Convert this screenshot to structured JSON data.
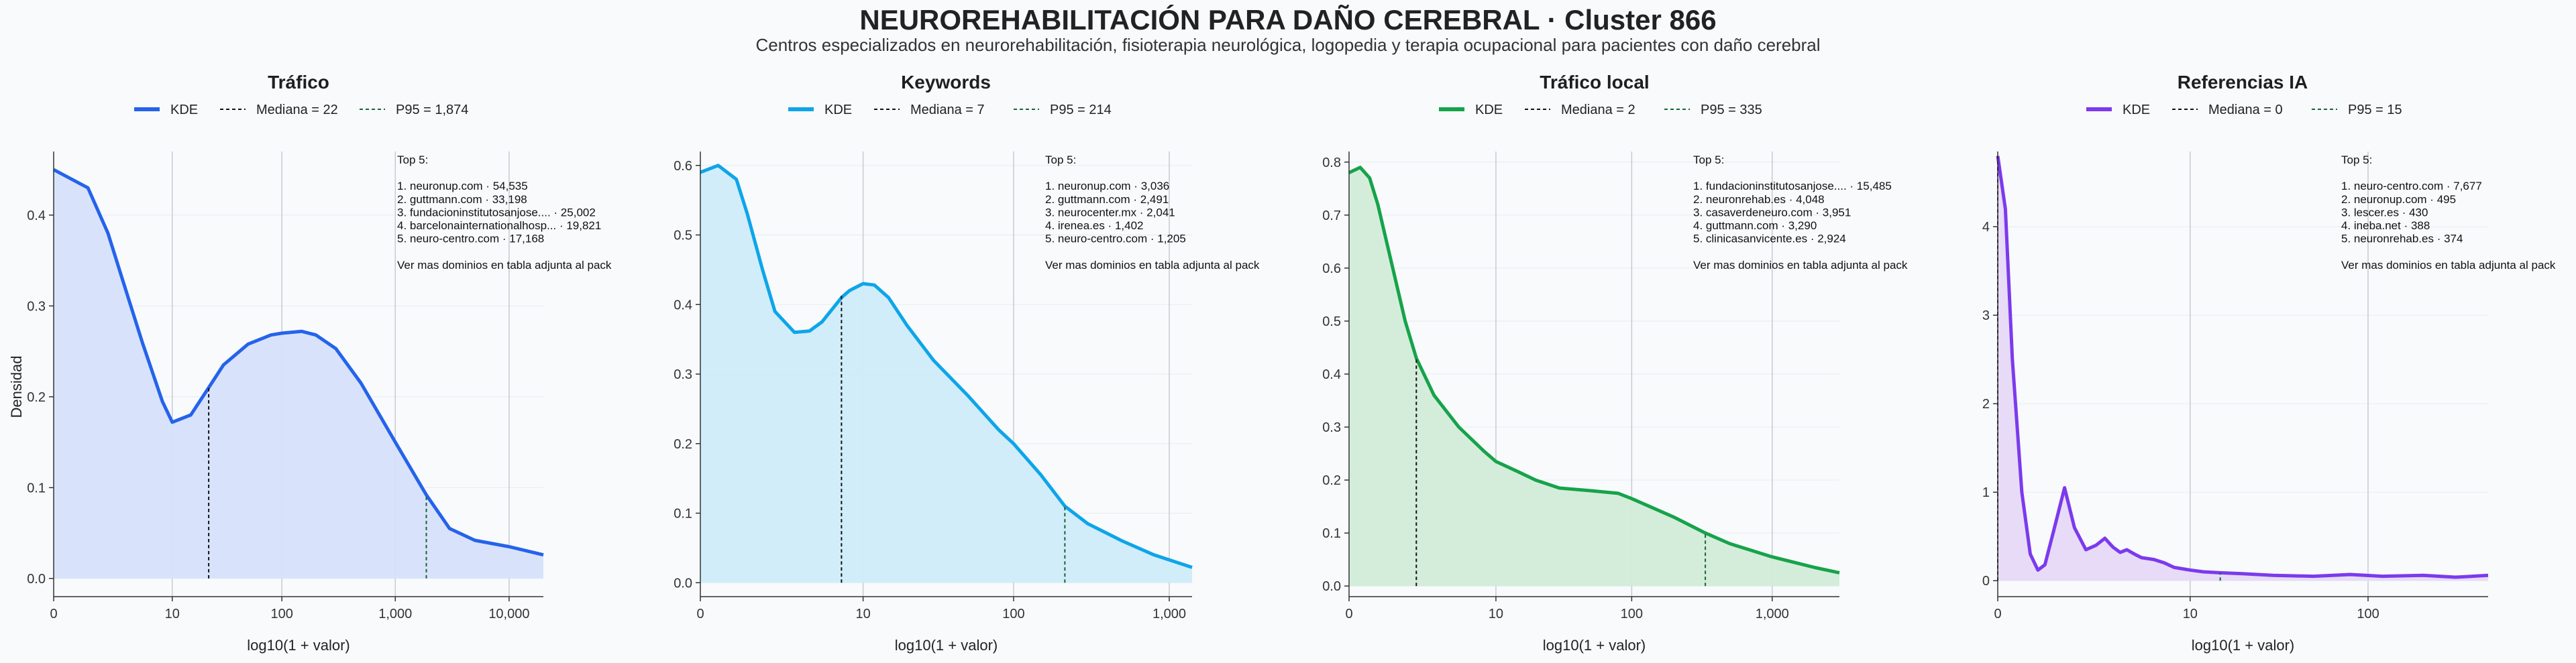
{
  "header": {
    "title": "NEUROREHABILITACIÓN PARA DAÑO CEREBRAL · Cluster 866",
    "subtitle": "Centros especializados en neurorehabilitación, fisioterapia neurológica, logopedia y terapia ocupacional para pacientes con daño cerebral"
  },
  "chart_data": [
    {
      "type": "area",
      "title": "Tráfico",
      "xlabel": "log10(1 + valor)",
      "ylabel": "Densidad",
      "x_scale": "log10(1+x)",
      "xlim": [
        0,
        20000
      ],
      "ylim": [
        -0.02,
        0.47
      ],
      "x_ticks": [
        0,
        10,
        100,
        1000,
        10000
      ],
      "x_tick_labels": [
        "0",
        "10",
        "100",
        "1,000",
        "10,000"
      ],
      "y_ticks": [
        0.0,
        0.1,
        0.2,
        0.3,
        0.4
      ],
      "y_tick_labels": [
        "0.0",
        "0.1",
        "0.2",
        "0.3",
        "0.4"
      ],
      "color": "#2563eb",
      "fill": "#d6e1fb",
      "series": [
        {
          "name": "KDE",
          "x": [
            0,
            1,
            2,
            3,
            5,
            8,
            10,
            15,
            22,
            30,
            50,
            80,
            100,
            150,
            200,
            300,
            500,
            1000,
            1874,
            3000,
            5000,
            10000,
            20000
          ],
          "y": [
            0.45,
            0.43,
            0.38,
            0.33,
            0.26,
            0.195,
            0.172,
            0.18,
            0.21,
            0.235,
            0.258,
            0.268,
            0.27,
            0.272,
            0.268,
            0.253,
            0.215,
            0.15,
            0.092,
            0.055,
            0.042,
            0.035,
            0.026
          ]
        }
      ],
      "markers": {
        "median": {
          "label": "Mediana = 22",
          "x": 22,
          "y": 0.21
        },
        "p95": {
          "label": "P95 = 1,874",
          "x": 1874,
          "y": 0.092
        }
      },
      "legend": {
        "kde": "KDE",
        "median": "Mediana = 22",
        "p95": "P95 = 1,874"
      },
      "annotation": [
        "Top 5:",
        "",
        "1. neuronup.com · 54,535",
        "2. guttmann.com · 33,198",
        "3. fundacioninstitutosanjose.... · 25,002",
        "4. barcelonainternationalhosp... · 19,821",
        "5. neuro-centro.com · 17,168",
        "",
        "Ver mas dominios en tabla adjunta al pack"
      ]
    },
    {
      "type": "area",
      "title": "Keywords",
      "xlabel": "log10(1 + valor)",
      "ylabel": "",
      "x_scale": "log10(1+x)",
      "xlim": [
        0,
        1400
      ],
      "ylim": [
        -0.02,
        0.62
      ],
      "x_ticks": [
        0,
        10,
        100,
        1000
      ],
      "x_tick_labels": [
        "0",
        "10",
        "100",
        "1,000"
      ],
      "y_ticks": [
        0.0,
        0.1,
        0.2,
        0.3,
        0.4,
        0.5,
        0.6
      ],
      "y_tick_labels": [
        "0.0",
        "0.1",
        "0.2",
        "0.3",
        "0.4",
        "0.5",
        "0.6"
      ],
      "color": "#0ea5e9",
      "fill": "#cfecfa",
      "series": [
        {
          "name": "KDE",
          "x": [
            0,
            0.3,
            0.7,
            1,
            1.5,
            2,
            3,
            4,
            5,
            7,
            8,
            10,
            12,
            15,
            20,
            30,
            50,
            80,
            100,
            150,
            214,
            300,
            500,
            800,
            1400
          ],
          "y": [
            0.59,
            0.6,
            0.58,
            0.53,
            0.45,
            0.39,
            0.36,
            0.362,
            0.375,
            0.41,
            0.42,
            0.43,
            0.428,
            0.41,
            0.37,
            0.32,
            0.27,
            0.22,
            0.2,
            0.155,
            0.11,
            0.085,
            0.06,
            0.04,
            0.022
          ]
        }
      ],
      "markers": {
        "median": {
          "label": "Mediana = 7",
          "x": 7,
          "y": 0.415
        },
        "p95": {
          "label": "P95 = 214",
          "x": 214,
          "y": 0.11
        }
      },
      "legend": {
        "kde": "KDE",
        "median": "Mediana = 7",
        "p95": "P95 = 214"
      },
      "annotation": [
        "Top 5:",
        "",
        "1. neuronup.com · 3,036",
        "2. guttmann.com · 2,491",
        "3. neurocenter.mx · 2,041",
        "4. irenea.es · 1,402",
        "5. neuro-centro.com · 1,205",
        "",
        "Ver mas dominios en tabla adjunta al pack"
      ]
    },
    {
      "type": "area",
      "title": "Tráfico local",
      "xlabel": "log10(1 + valor)",
      "ylabel": "",
      "x_scale": "log10(1+x)",
      "xlim": [
        0,
        3000
      ],
      "ylim": [
        -0.02,
        0.82
      ],
      "x_ticks": [
        0,
        10,
        100,
        1000
      ],
      "x_tick_labels": [
        "0",
        "10",
        "100",
        "1,000"
      ],
      "y_ticks": [
        0.0,
        0.1,
        0.2,
        0.3,
        0.4,
        0.5,
        0.6,
        0.7,
        0.8
      ],
      "y_tick_labels": [
        "0.0",
        "0.1",
        "0.2",
        "0.3",
        "0.4",
        "0.5",
        "0.6",
        "0.7",
        "0.8"
      ],
      "color": "#16a34a",
      "fill": "#d2ecd9",
      "series": [
        {
          "name": "KDE",
          "x": [
            0,
            0.2,
            0.4,
            0.6,
            1,
            1.5,
            2,
            3,
            5,
            8,
            10,
            15,
            20,
            30,
            50,
            80,
            100,
            200,
            335,
            500,
            1000,
            2000,
            3000
          ],
          "y": [
            0.78,
            0.79,
            0.77,
            0.72,
            0.61,
            0.5,
            0.43,
            0.36,
            0.3,
            0.255,
            0.235,
            0.215,
            0.2,
            0.185,
            0.18,
            0.175,
            0.165,
            0.13,
            0.1,
            0.08,
            0.055,
            0.035,
            0.025
          ]
        }
      ],
      "markers": {
        "median": {
          "label": "Mediana = 2",
          "x": 2,
          "y": 0.43
        },
        "p95": {
          "label": "P95 = 335",
          "x": 335,
          "y": 0.1
        }
      },
      "legend": {
        "kde": "KDE",
        "median": "Mediana = 2",
        "p95": "P95 = 335"
      },
      "annotation": [
        "Top 5:",
        "",
        "1. fundacioninstitutosanjose.... · 15,485",
        "2. neuronrehab.es · 4,048",
        "3. casaverdeneuro.com · 3,951",
        "4. guttmann.com · 3,290",
        "5. clinicasanvicente.es · 2,924",
        "",
        "Ver mas dominios en tabla adjunta al pack"
      ]
    },
    {
      "type": "area",
      "title": "Referencias IA",
      "xlabel": "log10(1 + valor)",
      "ylabel": "",
      "x_scale": "log10(1+x)",
      "xlim": [
        0,
        450
      ],
      "ylim": [
        -0.18,
        4.85
      ],
      "x_ticks": [
        0,
        10,
        100
      ],
      "x_tick_labels": [
        "0",
        "10",
        "100"
      ],
      "y_ticks": [
        0,
        1,
        2,
        3,
        4
      ],
      "y_tick_labels": [
        "0",
        "1",
        "2",
        "3",
        "4"
      ],
      "color": "#7c3aed",
      "fill": "#e6d9f7",
      "series": [
        {
          "name": "KDE",
          "x": [
            0,
            0.1,
            0.2,
            0.35,
            0.5,
            0.65,
            0.8,
            1,
            1.3,
            1.6,
            2,
            2.4,
            2.8,
            3.2,
            3.6,
            4,
            4.5,
            5,
            6,
            7,
            8,
            10,
            12,
            15,
            20,
            30,
            50,
            80,
            120,
            200,
            300,
            450
          ],
          "y": [
            4.8,
            4.2,
            2.5,
            1.0,
            0.3,
            0.12,
            0.18,
            0.55,
            1.05,
            0.6,
            0.35,
            0.4,
            0.48,
            0.38,
            0.32,
            0.35,
            0.3,
            0.26,
            0.24,
            0.2,
            0.15,
            0.12,
            0.1,
            0.09,
            0.08,
            0.06,
            0.05,
            0.07,
            0.05,
            0.06,
            0.04,
            0.06
          ]
        }
      ],
      "markers": {
        "median": {
          "label": "Mediana = 0",
          "x": 0,
          "y": 4.8
        },
        "p95": {
          "label": "P95 = 15",
          "x": 15,
          "y": 0.09
        }
      },
      "legend": {
        "kde": "KDE",
        "median": "Mediana = 0",
        "p95": "P95 = 15"
      },
      "annotation": [
        "Top 5:",
        "",
        "1. neuro-centro.com · 7,677",
        "2. neuronup.com · 495",
        "3. lescer.es · 430",
        "4. ineba.net · 388",
        "5. neuronrehab.es · 374",
        "",
        "Ver mas dominios en tabla adjunta al pack"
      ]
    }
  ]
}
